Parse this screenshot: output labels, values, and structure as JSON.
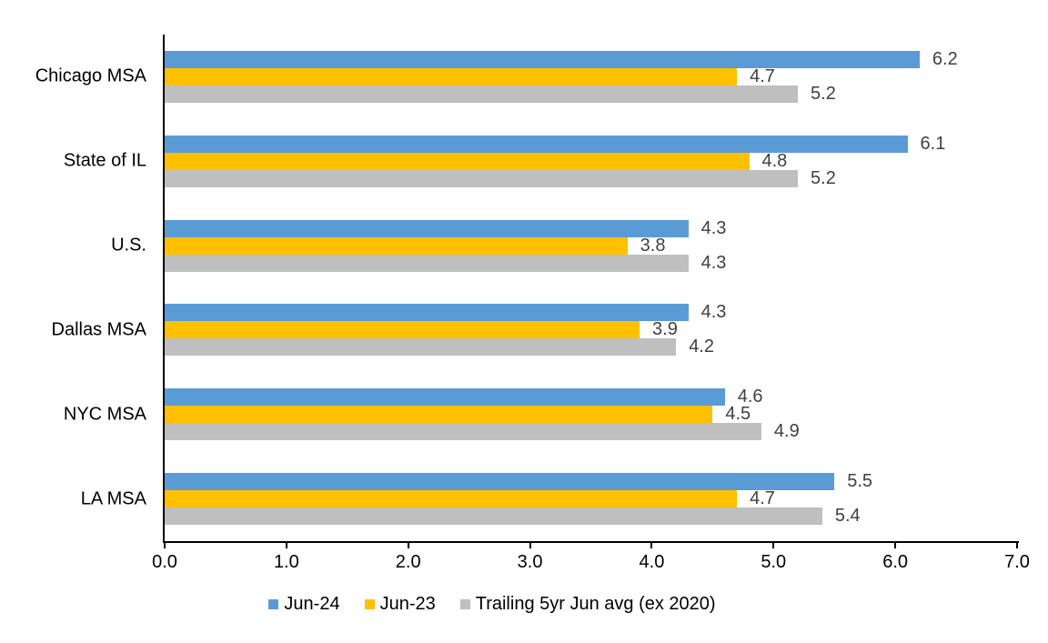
{
  "chart_data": {
    "type": "bar",
    "orientation": "horizontal",
    "title": "",
    "categories": [
      "Chicago MSA",
      "State of IL",
      "U.S.",
      "Dallas MSA",
      "NYC MSA",
      "LA MSA"
    ],
    "series": [
      {
        "name": "Jun-24",
        "color": "#5B9BD5",
        "values": [
          6.2,
          6.1,
          4.3,
          4.3,
          4.6,
          5.5
        ]
      },
      {
        "name": "Jun-23",
        "color": "#FFC000",
        "values": [
          4.7,
          4.8,
          3.8,
          3.9,
          4.5,
          4.7
        ]
      },
      {
        "name": "Trailing 5yr Jun avg (ex 2020)",
        "color": "#BFBFBF",
        "values": [
          5.2,
          5.2,
          4.3,
          4.2,
          4.9,
          5.4
        ]
      }
    ],
    "data_labels": [
      "6.2",
      "6.1",
      "4.3",
      "4.3",
      "4.6",
      "5.5",
      "4.7",
      "4.8",
      "3.8",
      "3.9",
      "4.5",
      "4.7",
      "5.2",
      "5.2",
      "4.3",
      "4.2",
      "4.9",
      "5.4"
    ],
    "xlim": [
      0.0,
      7.0
    ],
    "xticks": [
      "0.0",
      "1.0",
      "2.0",
      "3.0",
      "4.0",
      "5.0",
      "6.0",
      "7.0"
    ],
    "grid": false,
    "legend_position": "bottom"
  },
  "styles": {
    "value_label_color": "#404040",
    "axis_color": "#000000",
    "text_color": "#000000",
    "background_color": "#FFFFFF"
  }
}
